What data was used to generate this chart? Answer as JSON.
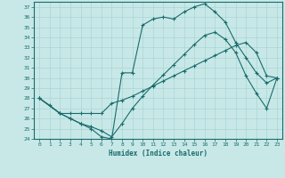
{
  "xlabel": "Humidex (Indice chaleur)",
  "bg_color": "#c8e8e8",
  "line_color": "#1a6b6b",
  "grid_color": "#aad4d4",
  "xlim": [
    -0.5,
    23.5
  ],
  "ylim": [
    24,
    37.5
  ],
  "xticks": [
    0,
    1,
    2,
    3,
    4,
    5,
    6,
    7,
    8,
    9,
    10,
    11,
    12,
    13,
    14,
    15,
    16,
    17,
    18,
    19,
    20,
    21,
    22,
    23
  ],
  "yticks": [
    24,
    25,
    26,
    27,
    28,
    29,
    30,
    31,
    32,
    33,
    34,
    35,
    36,
    37
  ],
  "line1_x": [
    0,
    1,
    2,
    3,
    4,
    5,
    6,
    7,
    8,
    9,
    10,
    11,
    12,
    13,
    14,
    15,
    16,
    17,
    18,
    19,
    20,
    21,
    22,
    23
  ],
  "line1_y": [
    28.0,
    27.3,
    26.5,
    26.0,
    25.5,
    25.0,
    24.2,
    24.0,
    30.5,
    30.5,
    35.2,
    35.8,
    36.0,
    35.8,
    36.5,
    37.0,
    37.3,
    36.5,
    35.5,
    33.5,
    32.0,
    30.5,
    29.5,
    30.0
  ],
  "line2_x": [
    0,
    2,
    3,
    4,
    5,
    6,
    7,
    8,
    9,
    10,
    11,
    12,
    13,
    14,
    15,
    16,
    17,
    18,
    19,
    20,
    21,
    22,
    23
  ],
  "line2_y": [
    28.0,
    26.5,
    26.5,
    26.5,
    26.5,
    26.5,
    27.5,
    27.8,
    28.2,
    28.7,
    29.2,
    29.7,
    30.2,
    30.7,
    31.2,
    31.7,
    32.2,
    32.7,
    33.2,
    33.5,
    32.5,
    30.2,
    30.0
  ],
  "line3_x": [
    0,
    2,
    3,
    4,
    5,
    6,
    7,
    8,
    9,
    10,
    11,
    12,
    13,
    14,
    15,
    16,
    17,
    18,
    19,
    20,
    21,
    22,
    23
  ],
  "line3_y": [
    28.0,
    26.5,
    26.0,
    25.5,
    25.2,
    24.8,
    24.2,
    25.5,
    27.0,
    28.2,
    29.3,
    30.3,
    31.3,
    32.3,
    33.3,
    34.2,
    34.5,
    33.8,
    32.5,
    30.2,
    28.5,
    27.0,
    30.0
  ]
}
